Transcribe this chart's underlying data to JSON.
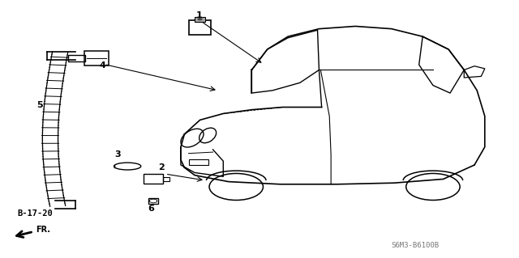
{
  "bg_color": "#ffffff",
  "line_color": "#000000",
  "ref_label": "B-17-20",
  "part_code": "S6M3-B6100B"
}
